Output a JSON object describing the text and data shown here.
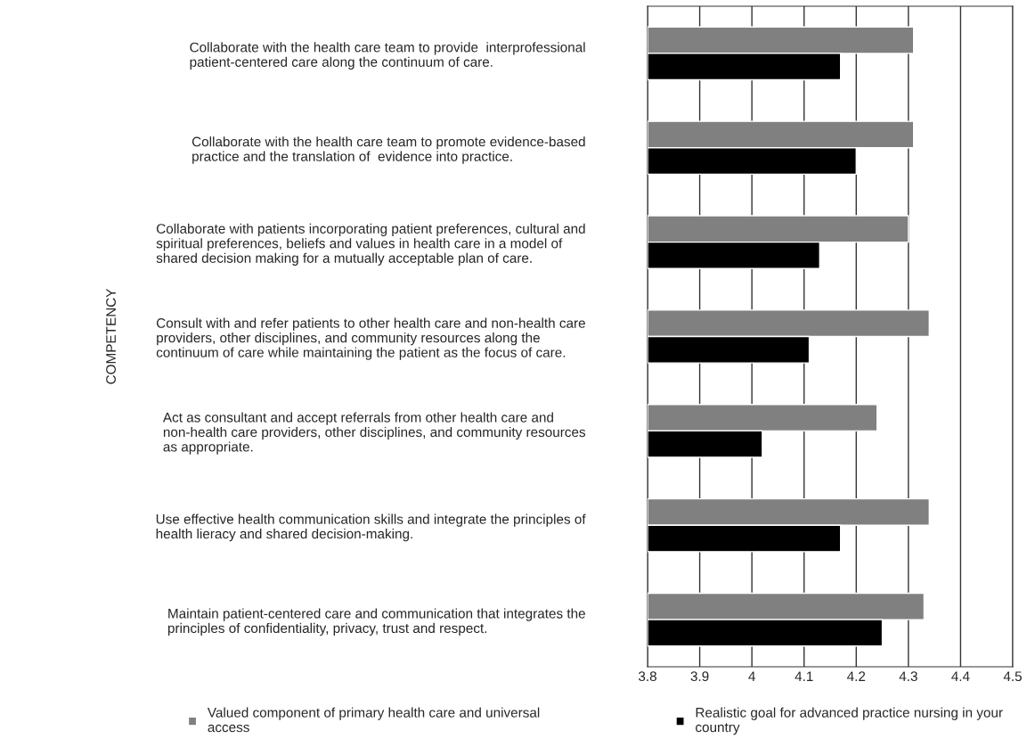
{
  "chart_data": {
    "type": "bar",
    "orientation": "horizontal",
    "ylabel": "COMPETENCY",
    "categories": [
      "Collaborate with the health care team to provide  interprofessional\npatient-centered care along the continuum of care.",
      "Collaborate with the health care team to promote evidence-based\npractice and the translation of  evidence into practice.",
      "Collaborate with patients incorporating patient preferences, cultural and\nspiritual preferences, beliefs and values in health care in a model of\nshared decision making for a mutually acceptable plan of care.",
      "Consult with and refer patients to other health care and non-health care\nproviders, other disciplines, and community resources along the\ncontinuum of care while maintaining the patient as the focus of care.",
      "Act as consultant and accept referrals from other health care and\nnon-health care providers, other disciplines, and community resources\nas appropriate.",
      "Use effective health communication skills and integrate the principles of\nhealth lieracy and shared decision-making.",
      "Maintain patient-centered care and communication that integrates the\nprinciples of confidentiality, privacy, trust and respect."
    ],
    "series": [
      {
        "name": "Valued component of primary health care and universal\naccess",
        "color": "#808080",
        "values": [
          4.31,
          4.31,
          4.3,
          4.34,
          4.24,
          4.34,
          4.33
        ]
      },
      {
        "name": "Realistic goal for advanced practice nursing in your\ncountry",
        "color": "#000000",
        "values": [
          4.17,
          4.2,
          4.13,
          4.11,
          4.02,
          4.17,
          4.25
        ]
      }
    ],
    "xlim": [
      3.8,
      4.5
    ],
    "xticks": [
      3.8,
      3.9,
      4,
      4.1,
      4.2,
      4.3,
      4.4,
      4.5
    ],
    "grid": "x",
    "legend": "bottom"
  }
}
